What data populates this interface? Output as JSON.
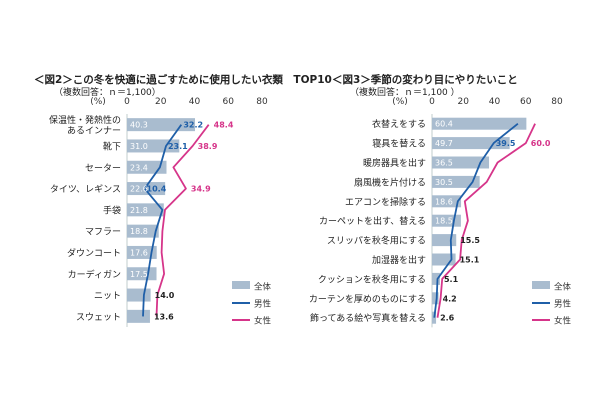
{
  "chart_data": [
    {
      "type": "bar",
      "title": "＜図2＞この冬を快適に過ごすために使用したい衣類　TOP10",
      "subtitle": "（複数回答：ｎ＝1,100）",
      "unit_label": "(%)",
      "xlim": [
        0,
        80
      ],
      "ticks": [
        "0",
        "20",
        "40",
        "60",
        "80"
      ],
      "categories": [
        [
          "保温性・発熱性の",
          "あるインナー"
        ],
        [
          "靴下"
        ],
        [
          "セーター"
        ],
        [
          "タイツ、レギンス"
        ],
        [
          "手袋"
        ],
        [
          "マフラー"
        ],
        [
          "ダウンコート"
        ],
        [
          "カーディガン"
        ],
        [
          "ニット"
        ],
        [
          "スウェット"
        ]
      ],
      "series": [
        {
          "name": "全体",
          "type": "bar",
          "color": "#a9bccf",
          "values": [
            40.3,
            31.0,
            23.4,
            22.6,
            21.8,
            18.8,
            17.6,
            17.5,
            14.0,
            13.6
          ]
        },
        {
          "name": "男性",
          "type": "line",
          "color": "#1f5fa8",
          "values": [
            32.2,
            23.1,
            19.5,
            10.4,
            21.0,
            17.0,
            14.5,
            12.5,
            10.0,
            9.5
          ]
        },
        {
          "name": "女性",
          "type": "line",
          "color": "#d6358a",
          "values": [
            48.4,
            38.9,
            27.5,
            34.9,
            22.5,
            21.0,
            20.5,
            22.0,
            18.0,
            17.5
          ]
        }
      ],
      "data_labels": [
        [
          "40.3",
          "32.2",
          "48.4"
        ],
        [
          "31.0",
          "23.1",
          "38.9"
        ],
        [
          "23.4",
          "",
          ""
        ],
        [
          "22.6",
          "10.4",
          "34.9"
        ],
        [
          "21.8",
          "",
          ""
        ],
        [
          "18.8",
          "",
          ""
        ],
        [
          "17.6",
          "",
          ""
        ],
        [
          "17.5",
          "",
          ""
        ],
        [
          "14.0",
          "",
          ""
        ],
        [
          "13.6",
          "",
          ""
        ]
      ],
      "legend": [
        "全体",
        "男性",
        "女性"
      ],
      "legend_position": "bottom-right"
    },
    {
      "type": "bar",
      "title": "＜図3＞季節の変わり目にやりたいこと",
      "subtitle": "（複数回答：ｎ＝1,100 ）",
      "unit_label": "(%)",
      "xlim": [
        0,
        80
      ],
      "ticks": [
        "0",
        "20",
        "40",
        "60",
        "80"
      ],
      "categories": [
        [
          "衣替えをする"
        ],
        [
          "寝具を替える"
        ],
        [
          "暖房器具を出す"
        ],
        [
          "扇風機を片付ける"
        ],
        [
          "エアコンを掃除する"
        ],
        [
          "カーペットを出す、替える"
        ],
        [
          "スリッパを秋冬用にする"
        ],
        [
          "加湿器を出す"
        ],
        [
          "クッションを秋冬用にする"
        ],
        [
          "カーテンを厚めのものにする"
        ],
        [
          "飾ってある絵や写真を替える"
        ]
      ],
      "series": [
        {
          "name": "全体",
          "type": "bar",
          "color": "#a9bccf",
          "values": [
            60.4,
            49.7,
            36.5,
            30.5,
            18.6,
            18.5,
            15.5,
            15.1,
            5.1,
            4.2,
            2.6
          ]
        },
        {
          "name": "男性",
          "type": "line",
          "color": "#1f5fa8",
          "values": [
            55.0,
            39.5,
            31.0,
            26.0,
            16.5,
            14.0,
            12.0,
            12.5,
            3.5,
            3.0,
            1.5
          ]
        },
        {
          "name": "女性",
          "type": "line",
          "color": "#d6358a",
          "values": [
            66.0,
            60.0,
            42.0,
            35.0,
            21.0,
            23.0,
            19.0,
            18.0,
            6.5,
            5.5,
            3.5
          ]
        }
      ],
      "data_labels": [
        [
          "60.4",
          "",
          ""
        ],
        [
          "49.7",
          "39.5",
          "60.0"
        ],
        [
          "36.5",
          "",
          ""
        ],
        [
          "30.5",
          "",
          ""
        ],
        [
          "18.6",
          "",
          ""
        ],
        [
          "18.5",
          "",
          ""
        ],
        [
          "15.5",
          "",
          ""
        ],
        [
          "15.1",
          "",
          ""
        ],
        [
          "5.1",
          "",
          ""
        ],
        [
          "4.2",
          "",
          ""
        ],
        [
          "2.6",
          "",
          ""
        ]
      ],
      "legend": [
        "全体",
        "男性",
        "女性"
      ],
      "legend_position": "bottom-right"
    }
  ]
}
